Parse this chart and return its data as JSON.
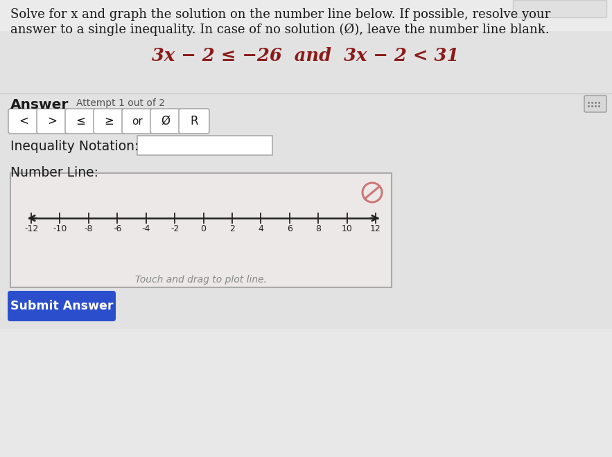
{
  "bg_color_top": "#e8e8e8",
  "bg_color_bottom": "#e0e0e0",
  "white": "#ffffff",
  "panel_bg": "#e6e6e6",
  "title_text_line1": "Solve for x and graph the solution on the number line below. If possible, resolve your",
  "title_text_line2": "answer to a single inequality. In case of no solution (Ø), leave the number line blank.",
  "equation": "3x − 2 ≤ −26  and  3x − 2 < 31",
  "answer_label": "Answer",
  "attempt_label": "Attempt 1 out of 2",
  "buttons": [
    "<",
    ">",
    "≤",
    "≥",
    "or",
    "Ø",
    "R"
  ],
  "inequality_label": "Inequality Notation:",
  "number_line_label": "Number Line:",
  "number_line_ticks": [
    -12,
    -10,
    -8,
    -6,
    -4,
    -2,
    0,
    2,
    4,
    6,
    8,
    10,
    12
  ],
  "drag_hint": "Touch and drag to plot line.",
  "submit_text": "Submit Answer",
  "submit_bg": "#2b4fcc",
  "submit_text_color": "#ffffff",
  "no_solution_color": "#cc7777",
  "separator_color": "#cccccc",
  "text_dark": "#1a1a1a",
  "text_gray": "#555555",
  "border_color": "#bbbbbb",
  "nl_box_bg": "#ede8e8",
  "top_right_box_bg": "#e0e0e0",
  "top_right_box_border": "#cccccc"
}
